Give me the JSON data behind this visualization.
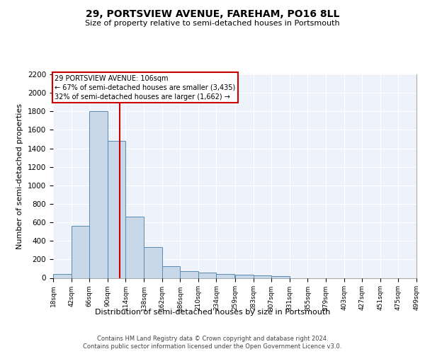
{
  "title1": "29, PORTSVIEW AVENUE, FAREHAM, PO16 8LL",
  "title2": "Size of property relative to semi-detached houses in Portsmouth",
  "xlabel": "Distribution of semi-detached houses by size in Portsmouth",
  "ylabel": "Number of semi-detached properties",
  "annotation_line1": "29 PORTSVIEW AVENUE: 106sqm",
  "annotation_line2": "← 67% of semi-detached houses are smaller (3,435)",
  "annotation_line3": "32% of semi-detached houses are larger (1,662) →",
  "property_size": 106,
  "bin_edges": [
    18,
    42,
    66,
    90,
    114,
    138,
    162,
    186,
    210,
    234,
    259,
    283,
    307,
    331,
    355,
    379,
    403,
    427,
    451,
    475,
    499
  ],
  "bar_heights": [
    40,
    560,
    1800,
    1480,
    660,
    330,
    130,
    70,
    55,
    45,
    35,
    25,
    20,
    0,
    0,
    0,
    0,
    0,
    0,
    0
  ],
  "bar_color": "#c8d8e8",
  "bar_edge_color": "#5a8ab0",
  "red_line_color": "#cc0000",
  "annotation_box_color": "#cc0000",
  "background_color": "#eef2fb",
  "ylim": [
    0,
    2200
  ],
  "yticks": [
    0,
    200,
    400,
    600,
    800,
    1000,
    1200,
    1400,
    1600,
    1800,
    2000,
    2200
  ],
  "footer_line1": "Contains HM Land Registry data © Crown copyright and database right 2024.",
  "footer_line2": "Contains public sector information licensed under the Open Government Licence v3.0."
}
